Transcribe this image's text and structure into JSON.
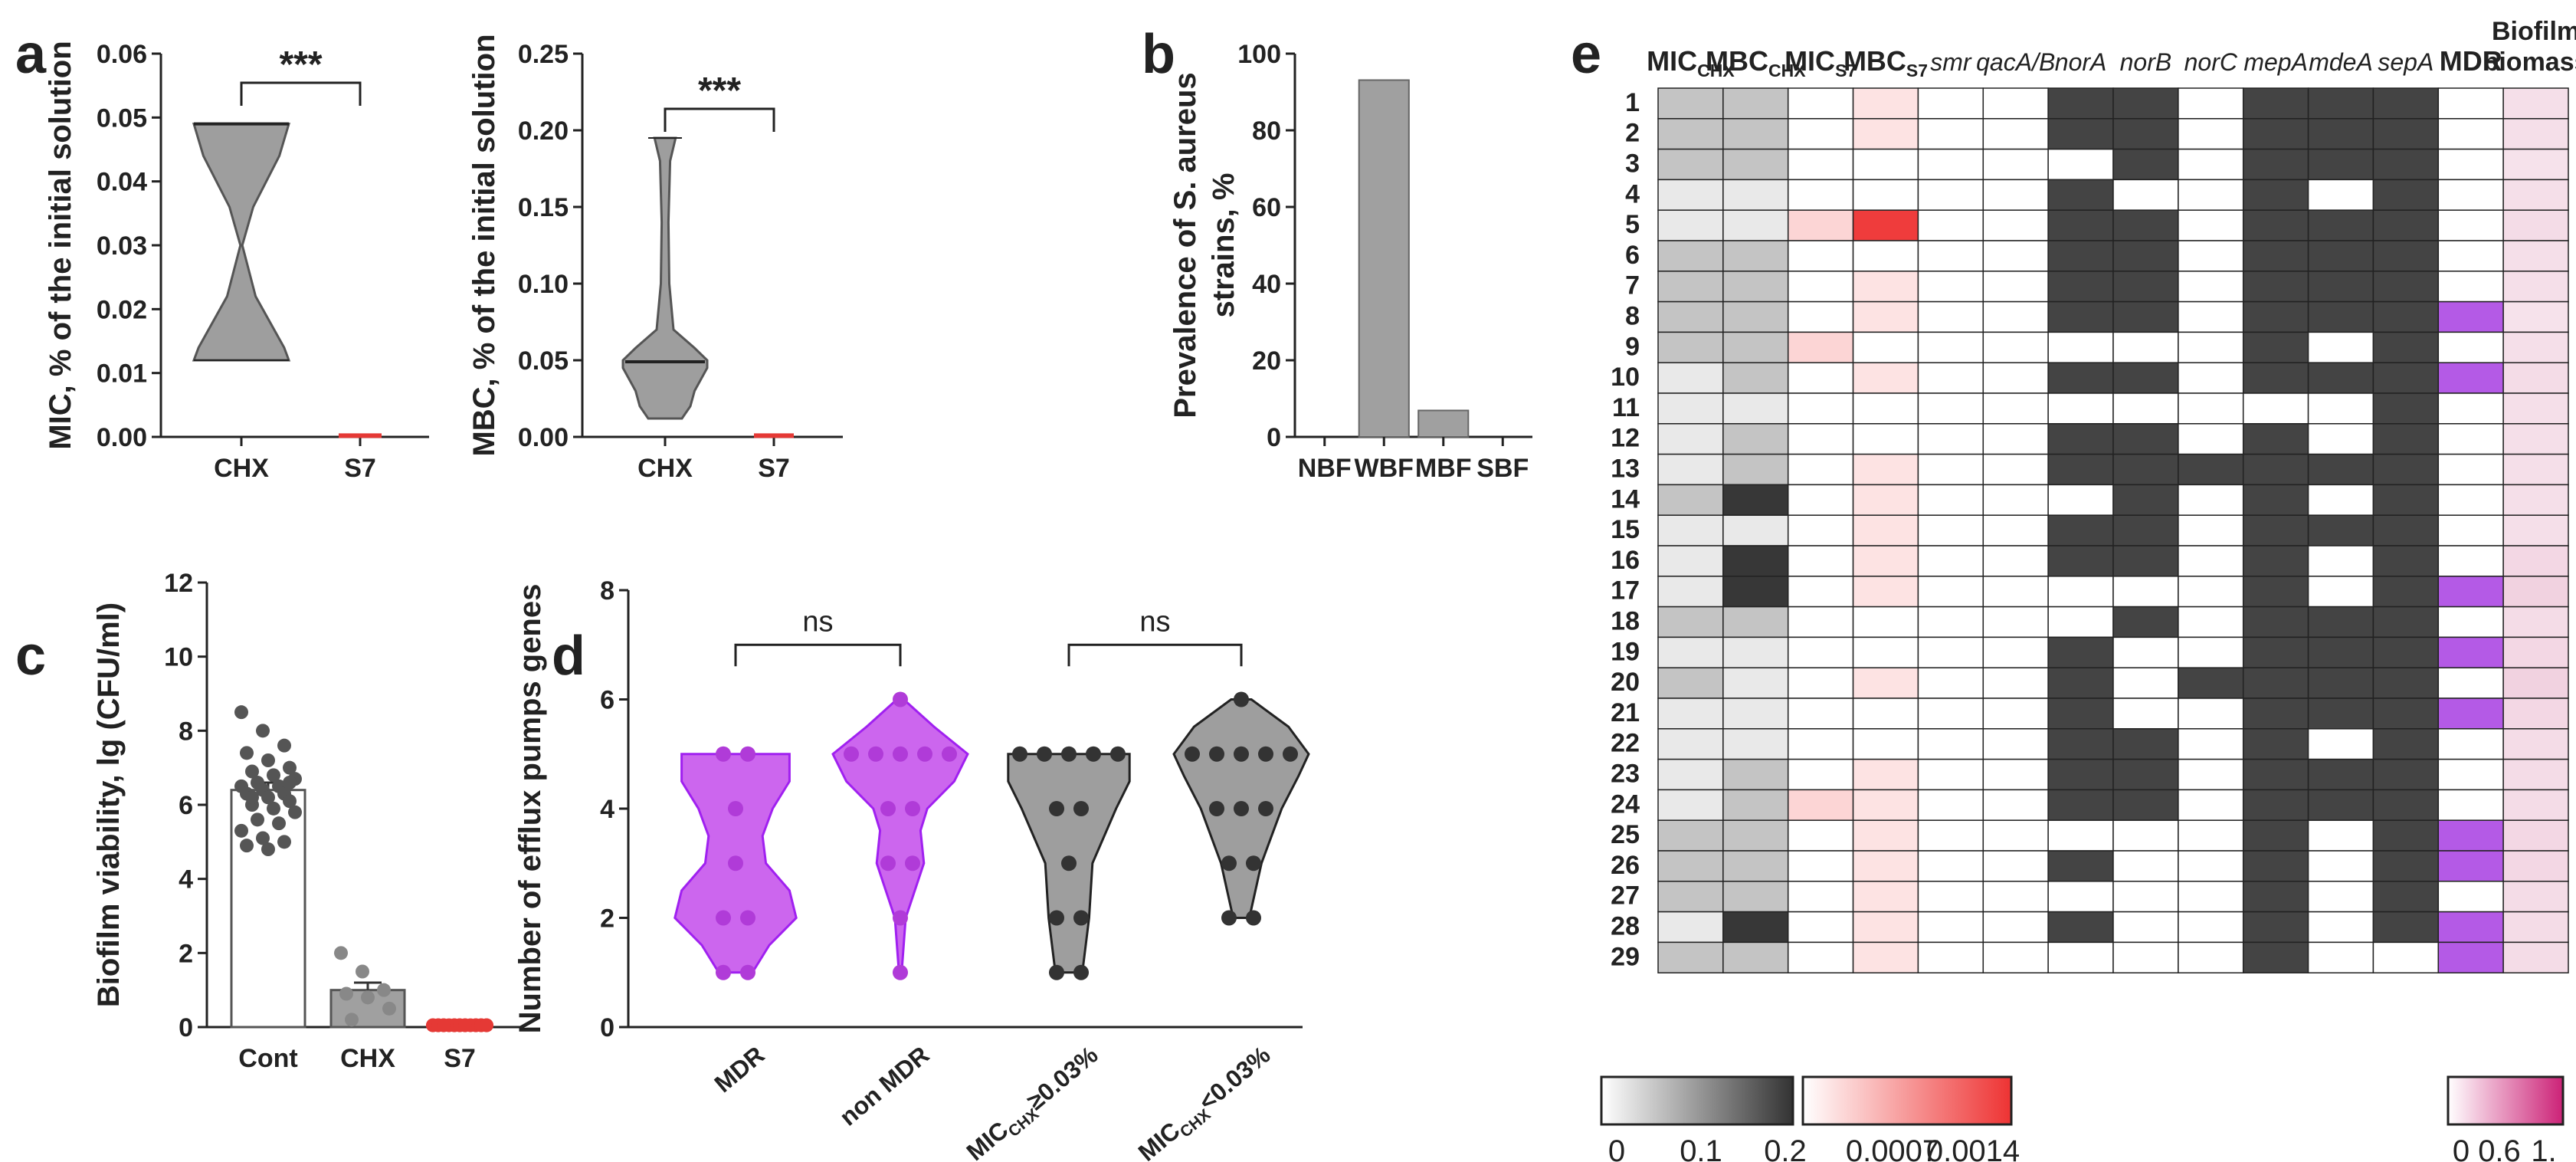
{
  "chart_data": [
    {
      "panel": "a",
      "type": "violin",
      "ylabel": "MIC, % of the initial solution",
      "categories": [
        "CHX",
        "S7"
      ],
      "yticks": [
        "0.00",
        "0.01",
        "0.02",
        "0.03",
        "0.04",
        "0.05",
        "0.06"
      ],
      "ylim": [
        0,
        0.06
      ],
      "significance": "***",
      "series": [
        {
          "name": "CHX",
          "min": 0.012,
          "max": 0.049,
          "median": 0.049,
          "color": "#9e9e9e"
        },
        {
          "name": "S7",
          "min": 0.0,
          "max": 0.0005,
          "median": 0.0002,
          "color": "#e53935"
        }
      ]
    },
    {
      "panel": "a2",
      "type": "violin",
      "ylabel": "MBC, % of the initial solution",
      "categories": [
        "CHX",
        "S7"
      ],
      "yticks": [
        "0.00",
        "0.05",
        "0.10",
        "0.15",
        "0.20",
        "0.25"
      ],
      "ylim": [
        0,
        0.25
      ],
      "significance": "***",
      "series": [
        {
          "name": "CHX",
          "min": 0.012,
          "max": 0.195,
          "median": 0.049,
          "color": "#9e9e9e"
        },
        {
          "name": "S7",
          "min": 0.0,
          "max": 0.001,
          "median": 0.0005,
          "color": "#e53935"
        }
      ]
    },
    {
      "panel": "b",
      "type": "bar",
      "ylabel": "Prevalence of S. aureus strains, %",
      "categories": [
        "NBF",
        "WBF",
        "MBF",
        "SBF"
      ],
      "values": [
        0,
        93.1,
        6.9,
        0
      ],
      "yticks": [
        "0",
        "20",
        "40",
        "60",
        "80",
        "100"
      ],
      "ylim": [
        0,
        100
      ]
    },
    {
      "panel": "c",
      "type": "bar",
      "ylabel": "Biofilm viability, lg (CFU/ml)",
      "categories": [
        "Cont",
        "CHX",
        "S7"
      ],
      "values": [
        6.4,
        1.0,
        0.0
      ],
      "errors": [
        0.2,
        0.2,
        0.0
      ],
      "yticks": [
        "0",
        "2",
        "4",
        "6",
        "8",
        "10",
        "12"
      ],
      "ylim": [
        0,
        12
      ],
      "points": {
        "Cont": [
          8.5,
          8.0,
          7.6,
          7.4,
          7.2,
          7.0,
          6.9,
          6.8,
          6.7,
          6.6,
          6.5,
          6.5,
          6.4,
          6.3,
          6.3,
          6.2,
          6.1,
          6.0,
          5.9,
          5.8,
          5.6,
          5.5,
          5.3,
          5.1,
          5.0,
          4.9,
          4.8,
          6.6,
          6.2
        ],
        "CHX": [
          2.0,
          1.5,
          1.0,
          0.9,
          0.8,
          0.5,
          0.2
        ],
        "S7": [
          0.05,
          0.05,
          0.05,
          0.05,
          0.05,
          0.05,
          0.05,
          0.05,
          0.05,
          0.05,
          0.05,
          0.05,
          0.05,
          0.05,
          0.05,
          0.05,
          0.05,
          0.05,
          0.05,
          0.05
        ]
      }
    },
    {
      "panel": "d",
      "type": "violin",
      "ylabel": "Number of efflux pumps genes",
      "categories": [
        "MDR",
        "non MDR",
        "MIC_CHX≥0.03%",
        "MIC_CHX<0.03%"
      ],
      "category_labels": [
        {
          "main": "MDR",
          "sub": ""
        },
        {
          "main": "non MDR",
          "sub": ""
        },
        {
          "main": "MIC",
          "sub": "CHX",
          "tail": "≥0.03%"
        },
        {
          "main": "MIC",
          "sub": "CHX",
          "tail": "<0.03%"
        }
      ],
      "yticks": [
        "0",
        "2",
        "4",
        "6",
        "8"
      ],
      "ylim": [
        0,
        8
      ],
      "comparisons": [
        {
          "pair": [
            "MDR",
            "non MDR"
          ],
          "label": "ns"
        },
        {
          "pair": [
            "MIC_CHX≥0.03%",
            "MIC_CHX<0.03%"
          ],
          "label": "ns"
        }
      ],
      "series": [
        {
          "name": "MDR",
          "color": "#cc66ee",
          "edge": "#a020f0",
          "points": [
            5,
            5,
            4,
            3,
            2,
            2,
            1,
            1
          ]
        },
        {
          "name": "non MDR",
          "color": "#cc66ee",
          "edge": "#a020f0",
          "points": [
            6,
            5,
            5,
            5,
            5,
            5,
            4,
            4,
            3,
            3,
            2,
            1
          ]
        },
        {
          "name": "MIC_CHX≥0.03%",
          "color": "#9e9e9e",
          "edge": "#222222",
          "points": [
            5,
            5,
            5,
            5,
            5,
            4,
            4,
            3,
            2,
            2,
            1,
            1
          ]
        },
        {
          "name": "MIC_CHX<0.03%",
          "color": "#9e9e9e",
          "edge": "#222222",
          "points": [
            6,
            5,
            5,
            5,
            5,
            5,
            4,
            4,
            4,
            3,
            3,
            2,
            2
          ]
        }
      ]
    },
    {
      "panel": "e",
      "type": "heatmap",
      "columns": [
        {
          "main": "MIC",
          "sub": "CHX",
          "italic": false
        },
        {
          "main": "MBC",
          "sub": "CHX",
          "italic": false
        },
        {
          "main": "MIC",
          "sub": "S7",
          "italic": false
        },
        {
          "main": "MBC",
          "sub": "S7",
          "italic": false
        },
        {
          "main": "smr",
          "sub": "",
          "italic": true
        },
        {
          "main": "qacA/B",
          "sub": "",
          "italic": true
        },
        {
          "main": "norA",
          "sub": "",
          "italic": true
        },
        {
          "main": "norB",
          "sub": "",
          "italic": true
        },
        {
          "main": "norC",
          "sub": "",
          "italic": true
        },
        {
          "main": "mepA",
          "sub": "",
          "italic": true
        },
        {
          "main": "mdeA",
          "sub": "",
          "italic": true
        },
        {
          "main": "sepA",
          "sub": "",
          "italic": true
        },
        {
          "main": "MDR",
          "sub": "",
          "italic": false
        },
        {
          "main": "Biofilm biomass",
          "sub": "",
          "italic": false
        }
      ],
      "rows": [
        "1",
        "2",
        "3",
        "4",
        "5",
        "6",
        "7",
        "8",
        "9",
        "10",
        "11",
        "12",
        "13",
        "14",
        "15",
        "16",
        "17",
        "18",
        "19",
        "20",
        "21",
        "22",
        "23",
        "24",
        "25",
        "26",
        "27",
        "28",
        "29"
      ],
      "mic_chx": [
        0.05,
        0.05,
        0.05,
        0.012,
        0.012,
        0.05,
        0.05,
        0.05,
        0.05,
        0.012,
        0.012,
        0.012,
        0.012,
        0.05,
        0.012,
        0.012,
        0.012,
        0.05,
        0.012,
        0.05,
        0.012,
        0.012,
        0.012,
        0.012,
        0.05,
        0.05,
        0.05,
        0.012,
        0.05
      ],
      "mbc_chx": [
        0.05,
        0.05,
        0.05,
        0.012,
        0.012,
        0.05,
        0.05,
        0.05,
        0.05,
        0.05,
        0.012,
        0.05,
        0.05,
        0.195,
        0.012,
        0.195,
        0.195,
        0.05,
        0.012,
        0.012,
        0.012,
        0.012,
        0.05,
        0.05,
        0.05,
        0.05,
        0.05,
        0.195,
        0.05
      ],
      "mic_s7": [
        0,
        0,
        0,
        0,
        0.0003,
        0,
        0,
        0,
        0.0003,
        0,
        0,
        0,
        0,
        0,
        0,
        0,
        0,
        0,
        0,
        0,
        0,
        0,
        0,
        0.0003,
        0,
        0,
        0,
        0,
        0
      ],
      "mbc_s7": [
        0.0002,
        0.0002,
        0,
        0,
        0.0014,
        0,
        0.0002,
        0.0002,
        0,
        0.0002,
        0,
        0,
        0.0002,
        0.0002,
        0.0002,
        0.0002,
        0.0002,
        0,
        0,
        0.0002,
        0,
        0,
        0.0002,
        0.0002,
        0.0002,
        0.0002,
        0.0002,
        0.0002,
        0.0002
      ],
      "genes": {
        "smr": [
          0,
          0,
          0,
          0,
          0,
          0,
          0,
          0,
          0,
          0,
          0,
          0,
          0,
          0,
          0,
          0,
          0,
          0,
          0,
          0,
          0,
          0,
          0,
          0,
          0,
          0,
          0,
          0,
          0
        ],
        "qacA/B": [
          0,
          0,
          0,
          0,
          0,
          0,
          0,
          0,
          0,
          0,
          0,
          0,
          0,
          0,
          0,
          0,
          0,
          0,
          0,
          0,
          0,
          0,
          0,
          0,
          0,
          0,
          0,
          0,
          0
        ],
        "norA": [
          1,
          1,
          0,
          1,
          1,
          1,
          1,
          1,
          0,
          1,
          0,
          1,
          1,
          0,
          1,
          1,
          0,
          0,
          1,
          1,
          1,
          1,
          1,
          1,
          0,
          1,
          0,
          1,
          0
        ],
        "norB": [
          1,
          1,
          1,
          0,
          1,
          1,
          1,
          1,
          0,
          1,
          0,
          1,
          1,
          1,
          1,
          1,
          0,
          1,
          0,
          0,
          0,
          1,
          1,
          1,
          0,
          0,
          0,
          0,
          0
        ],
        "norC": [
          0,
          0,
          0,
          0,
          0,
          0,
          0,
          0,
          0,
          0,
          0,
          0,
          1,
          0,
          0,
          0,
          0,
          0,
          0,
          1,
          0,
          0,
          0,
          0,
          0,
          0,
          0,
          0,
          0
        ],
        "mepA": [
          1,
          1,
          1,
          1,
          1,
          1,
          1,
          1,
          1,
          1,
          0,
          1,
          1,
          1,
          1,
          1,
          1,
          1,
          1,
          1,
          1,
          1,
          1,
          1,
          1,
          1,
          1,
          1,
          1
        ],
        "mdeA": [
          1,
          1,
          1,
          0,
          1,
          1,
          1,
          1,
          0,
          1,
          0,
          0,
          1,
          0,
          1,
          0,
          0,
          1,
          1,
          1,
          1,
          0,
          1,
          1,
          0,
          0,
          0,
          0,
          0
        ],
        "sepA": [
          1,
          1,
          1,
          1,
          1,
          1,
          1,
          1,
          1,
          1,
          1,
          1,
          1,
          1,
          1,
          1,
          1,
          1,
          1,
          1,
          1,
          1,
          1,
          1,
          1,
          1,
          1,
          1,
          0
        ]
      },
      "mdr": [
        0,
        0,
        0,
        0,
        0,
        0,
        0,
        1,
        0,
        1,
        0,
        0,
        0,
        0,
        0,
        0,
        1,
        0,
        1,
        0,
        1,
        0,
        0,
        0,
        1,
        1,
        0,
        1,
        1
      ],
      "biofilm_biomass": [
        0.2,
        0.2,
        0.18,
        0.2,
        0.22,
        0.2,
        0.2,
        0.18,
        0.2,
        0.22,
        0.2,
        0.2,
        0.2,
        0.2,
        0.2,
        0.25,
        0.28,
        0.22,
        0.25,
        0.28,
        0.25,
        0.22,
        0.22,
        0.22,
        0.25,
        0.25,
        0.22,
        0.22,
        0.22
      ],
      "legends": [
        {
          "name": "CHX scale",
          "ticks": [
            "0",
            "0.1",
            "0.2"
          ],
          "from": "#ffffff",
          "to": "#333333"
        },
        {
          "name": "S7 scale",
          "ticks": [
            "0.0007",
            "0.0014"
          ],
          "from": "#ffffff",
          "to": "#ee3333"
        },
        {
          "name": "Biomass scale",
          "ticks": [
            "0",
            "0.6",
            "1."
          ],
          "from": "#ffffff",
          "to": "#cc2277"
        }
      ]
    }
  ],
  "panel_letters": [
    "a",
    "b",
    "c",
    "d",
    "e"
  ]
}
